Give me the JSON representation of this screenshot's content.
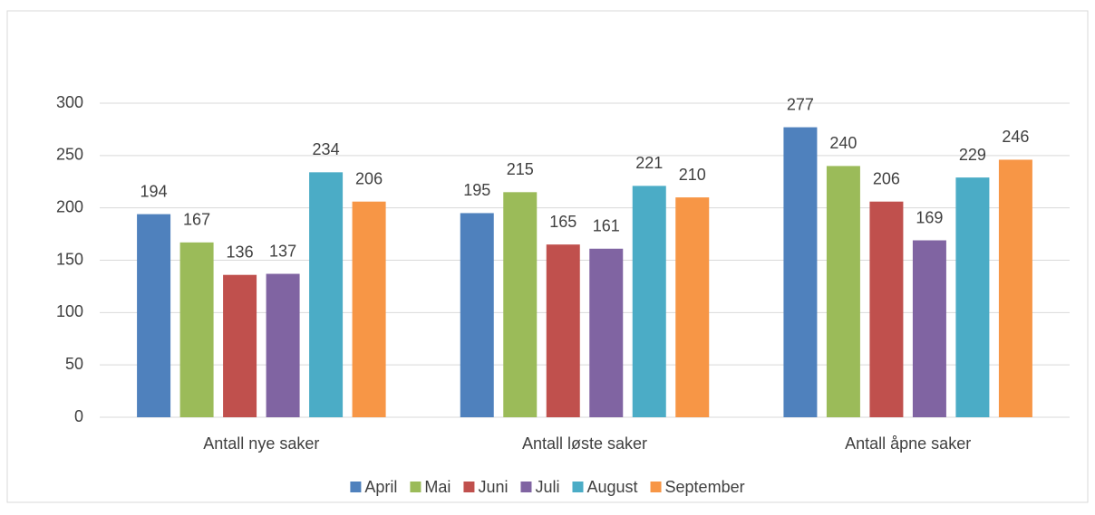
{
  "chart_data": {
    "type": "bar",
    "categories": [
      "Antall nye saker",
      "Antall løste saker",
      "Antall åpne saker"
    ],
    "series": [
      {
        "name": "April",
        "color": "#4f81bd",
        "values": [
          194,
          195,
          277
        ]
      },
      {
        "name": "Mai",
        "color": "#9bbb59",
        "values": [
          167,
          215,
          240
        ]
      },
      {
        "name": "Juni",
        "color": "#c0504d",
        "values": [
          136,
          165,
          206
        ]
      },
      {
        "name": "Juli",
        "color": "#8064a2",
        "values": [
          137,
          161,
          169
        ]
      },
      {
        "name": "August",
        "color": "#4bacc6",
        "values": [
          234,
          221,
          229
        ]
      },
      {
        "name": "September",
        "color": "#f79646",
        "values": [
          206,
          210,
          246
        ]
      }
    ],
    "ylim": [
      0,
      300
    ],
    "yticks": [
      0,
      50,
      100,
      150,
      200,
      250,
      300
    ],
    "grid": true,
    "legend": "bottom"
  }
}
